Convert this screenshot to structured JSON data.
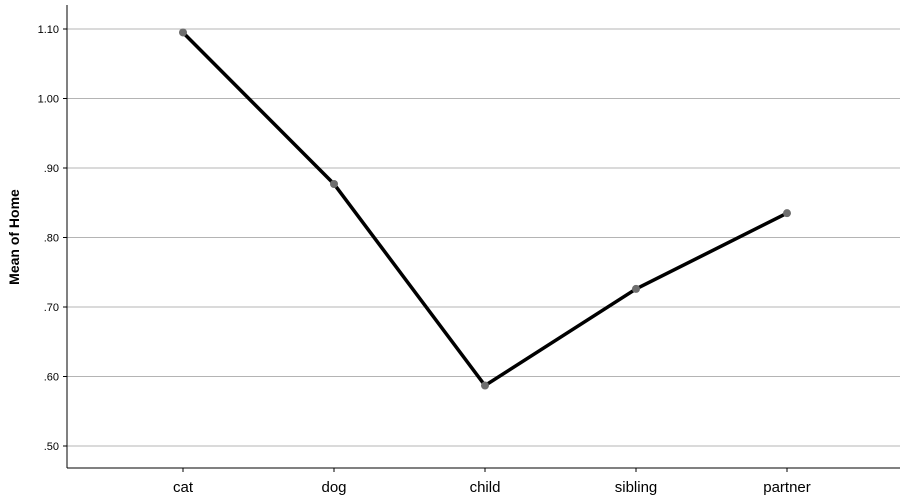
{
  "chart_data": {
    "type": "line",
    "categories": [
      "cat",
      "dog",
      "child",
      "sibling",
      "partner"
    ],
    "values": [
      1.095,
      0.877,
      0.587,
      0.726,
      0.835
    ],
    "ylabel": "Mean of Home",
    "xlabel": "",
    "ylim": [
      0.47,
      1.135
    ],
    "yticks": [
      0.5,
      0.6,
      0.7,
      0.8,
      0.9,
      1.0,
      1.1
    ],
    "ytick_labels": [
      ".50",
      ".60",
      ".70",
      ".80",
      ".90",
      "1.00",
      "1.10"
    ],
    "grid": true,
    "legend": "none",
    "colors": {
      "line": "#000000",
      "marker": "#6e6e6e",
      "grid": "#b4b4b4",
      "axis": "#000000"
    }
  }
}
